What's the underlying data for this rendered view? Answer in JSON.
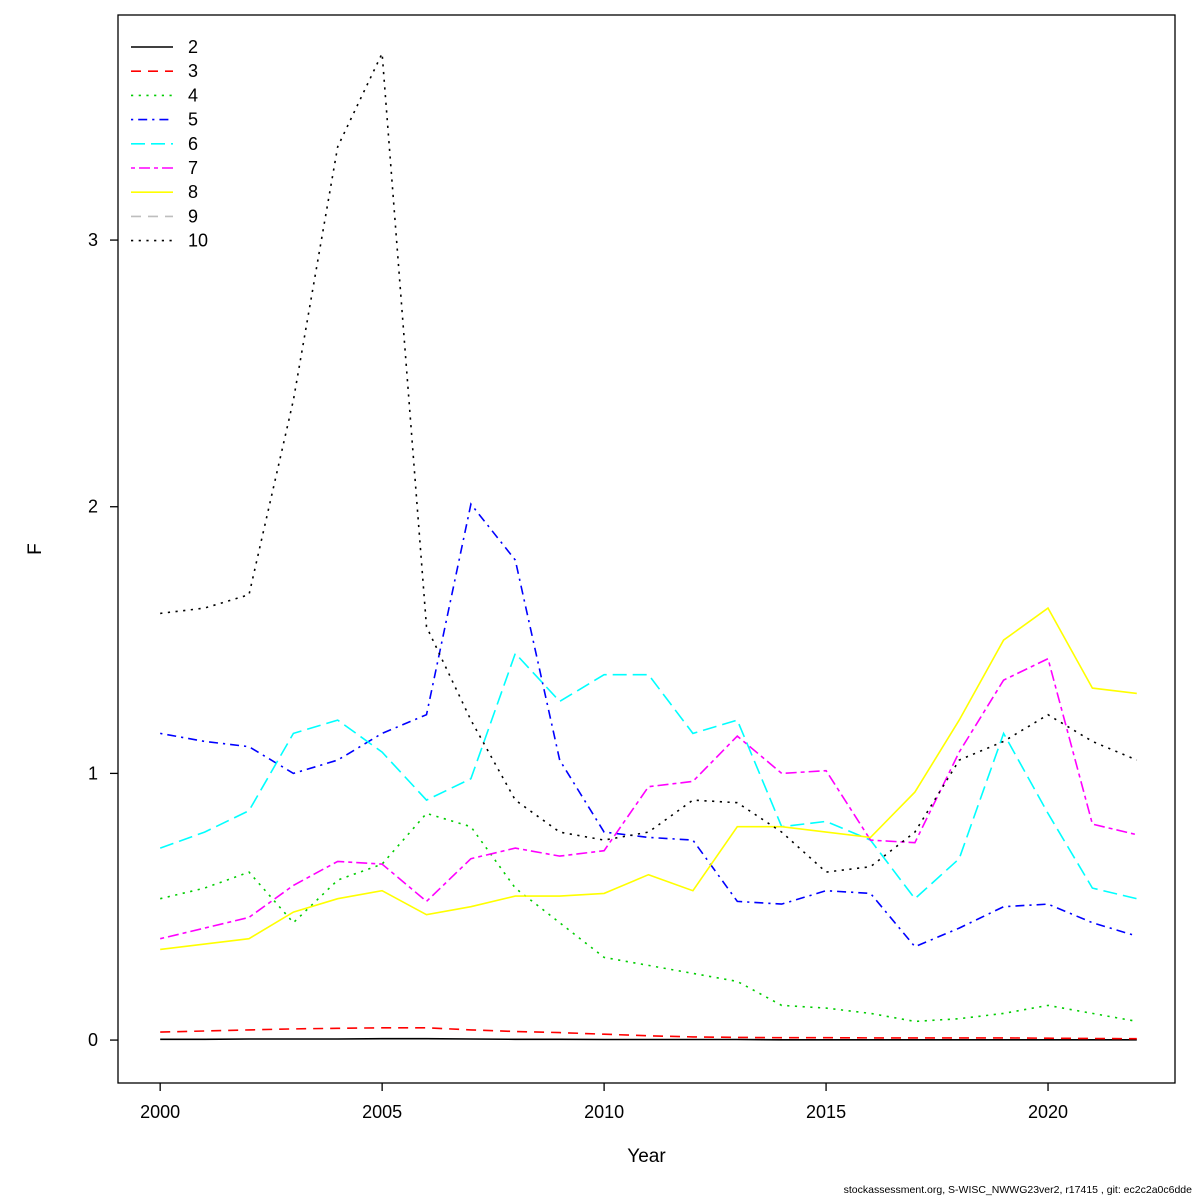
{
  "footer": "stockassessment.org, S-WISC_NWWG23ver2, r17415 , git: ec2c2a0c6dde",
  "chart_data": {
    "type": "line",
    "title": "",
    "xlabel": "Year",
    "ylabel": "F",
    "x": [
      2000,
      2001,
      2002,
      2003,
      2004,
      2005,
      2006,
      2007,
      2008,
      2009,
      2010,
      2011,
      2012,
      2013,
      2014,
      2015,
      2016,
      2017,
      2018,
      2019,
      2020,
      2021,
      2022
    ],
    "xticks": [
      2000,
      2005,
      2010,
      2015,
      2020
    ],
    "yticks": [
      0,
      1,
      2,
      3
    ],
    "xlim": [
      1999.05,
      2022.86
    ],
    "ylim": [
      -0.161,
      3.844
    ],
    "grid": false,
    "legend_position": "topleft",
    "series": [
      {
        "name": "2",
        "color": "#000000",
        "dash": "solid",
        "values": [
          0.003,
          0.003,
          0.004,
          0.004,
          0.004,
          0.005,
          0.005,
          0.004,
          0.003,
          0.003,
          0.002,
          0.002,
          0.002,
          0.002,
          0.001,
          0.001,
          0.001,
          0.001,
          0.001,
          0.001,
          0.001,
          0.001,
          0.001
        ]
      },
      {
        "name": "3",
        "color": "#FF0000",
        "dash": "dashed",
        "values": [
          0.03,
          0.034,
          0.038,
          0.042,
          0.044,
          0.046,
          0.046,
          0.038,
          0.032,
          0.028,
          0.022,
          0.016,
          0.012,
          0.01,
          0.009,
          0.009,
          0.008,
          0.008,
          0.008,
          0.008,
          0.007,
          0.006,
          0.005
        ]
      },
      {
        "name": "4",
        "color": "#00CD00",
        "dash": "dotted",
        "values": [
          0.53,
          0.57,
          0.63,
          0.44,
          0.6,
          0.66,
          0.85,
          0.8,
          0.57,
          0.44,
          0.31,
          0.28,
          0.25,
          0.22,
          0.13,
          0.12,
          0.1,
          0.07,
          0.08,
          0.1,
          0.13,
          0.1,
          0.07
        ]
      },
      {
        "name": "5",
        "color": "#0000FF",
        "dash": "dotdash",
        "values": [
          1.15,
          1.12,
          1.1,
          1.0,
          1.05,
          1.15,
          1.22,
          2.01,
          1.8,
          1.05,
          0.78,
          0.76,
          0.75,
          0.52,
          0.51,
          0.56,
          0.55,
          0.35,
          0.42,
          0.5,
          0.51,
          0.44,
          0.39
        ]
      },
      {
        "name": "6",
        "color": "#00FFFF",
        "dash": "longdash",
        "values": [
          0.72,
          0.78,
          0.86,
          1.15,
          1.2,
          1.08,
          0.9,
          0.98,
          1.45,
          1.27,
          1.37,
          1.37,
          1.15,
          1.2,
          0.8,
          0.82,
          0.75,
          0.53,
          0.68,
          1.15,
          0.85,
          0.57,
          0.53
        ]
      },
      {
        "name": "7",
        "color": "#FF00FF",
        "dash": "twodash",
        "values": [
          0.38,
          0.42,
          0.46,
          0.58,
          0.67,
          0.66,
          0.52,
          0.68,
          0.72,
          0.69,
          0.71,
          0.95,
          0.97,
          1.14,
          1.0,
          1.01,
          0.75,
          0.74,
          1.08,
          1.35,
          1.43,
          0.81,
          0.77
        ]
      },
      {
        "name": "8",
        "color": "#FFFF00",
        "dash": "solid",
        "values": [
          0.34,
          0.36,
          0.38,
          0.48,
          0.53,
          0.56,
          0.47,
          0.5,
          0.54,
          0.54,
          0.55,
          0.62,
          0.56,
          0.8,
          0.8,
          0.78,
          0.76,
          0.93,
          1.2,
          1.5,
          1.62,
          1.32,
          1.3
        ]
      },
      {
        "name": "9",
        "color": "#BEBEBE",
        "dash": "dashed",
        "values": []
      },
      {
        "name": "10",
        "color": "#000000",
        "dash": "dotted",
        "values": [
          1.6,
          1.62,
          1.67,
          2.4,
          3.35,
          3.7,
          1.55,
          1.2,
          0.9,
          0.78,
          0.75,
          0.78,
          0.9,
          0.89,
          0.78,
          0.63,
          0.65,
          0.78,
          1.05,
          1.12,
          1.22,
          1.12,
          1.05
        ]
      }
    ]
  }
}
